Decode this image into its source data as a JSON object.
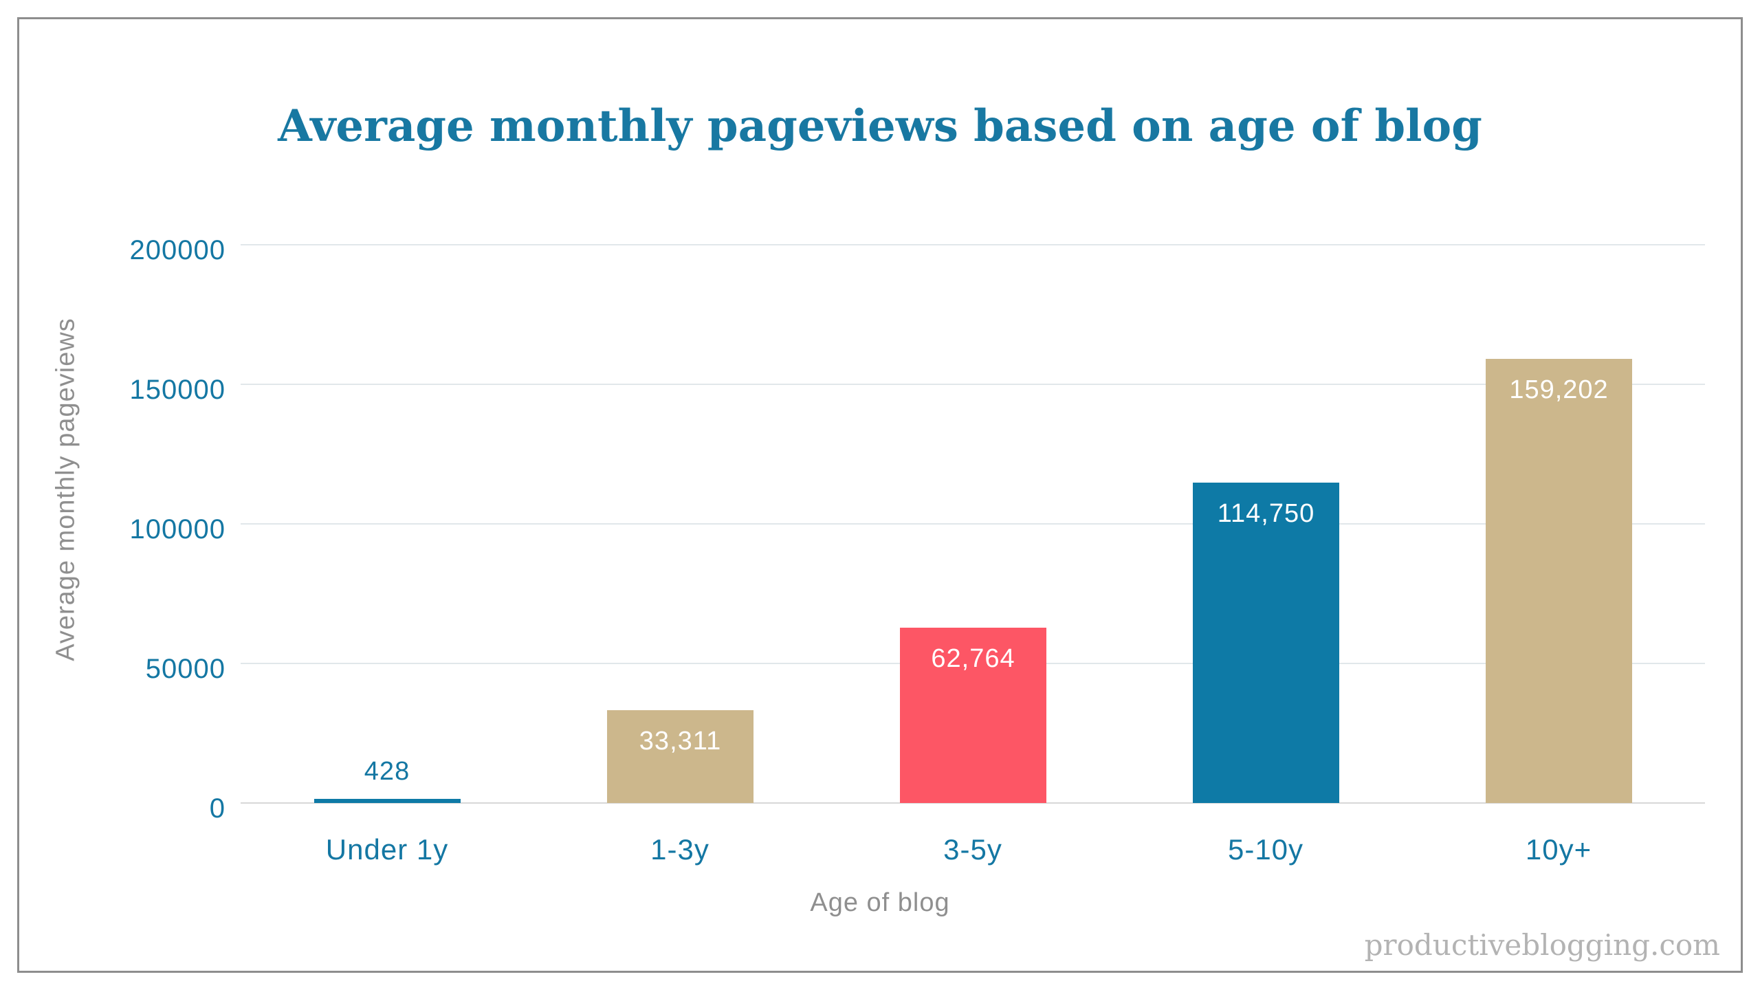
{
  "header": {
    "title": "Average monthly pageviews based on age of blog"
  },
  "watermark": "productiveblogging.com",
  "chart_data": {
    "type": "bar",
    "title": "Average monthly pageviews based on age of blog",
    "xlabel": "Age of blog",
    "ylabel": "Average monthly pageviews",
    "categories": [
      "Under 1y",
      "1-3y",
      "3-5y",
      "5-10y",
      "10y+"
    ],
    "values": [
      428,
      33311,
      62764,
      114750,
      159202
    ],
    "value_labels": [
      "428",
      "33,311",
      "62,764",
      "114,750",
      "159,202"
    ],
    "bar_colors": [
      "#0e7aa6",
      "#ccb78c",
      "#fd5665",
      "#0e7aa6",
      "#ccb78c"
    ],
    "ylim": [
      0,
      200000
    ],
    "yticks": [
      0,
      50000,
      100000,
      150000,
      200000
    ],
    "ytick_labels": [
      "0",
      "50000",
      "100000",
      "150000",
      "200000"
    ],
    "grid": true,
    "legend": false,
    "colors": {
      "title": "#1878a2",
      "tick_label": "#1477a3",
      "axis_title": "#8f8f8f",
      "gridline": "#e1e7ea",
      "baseline": "#d8d8d8",
      "value_label_inside": "#ffffff",
      "watermark": "#b3b3b3",
      "frame_border": "#8e8e8e",
      "background": "#ffffff"
    }
  }
}
